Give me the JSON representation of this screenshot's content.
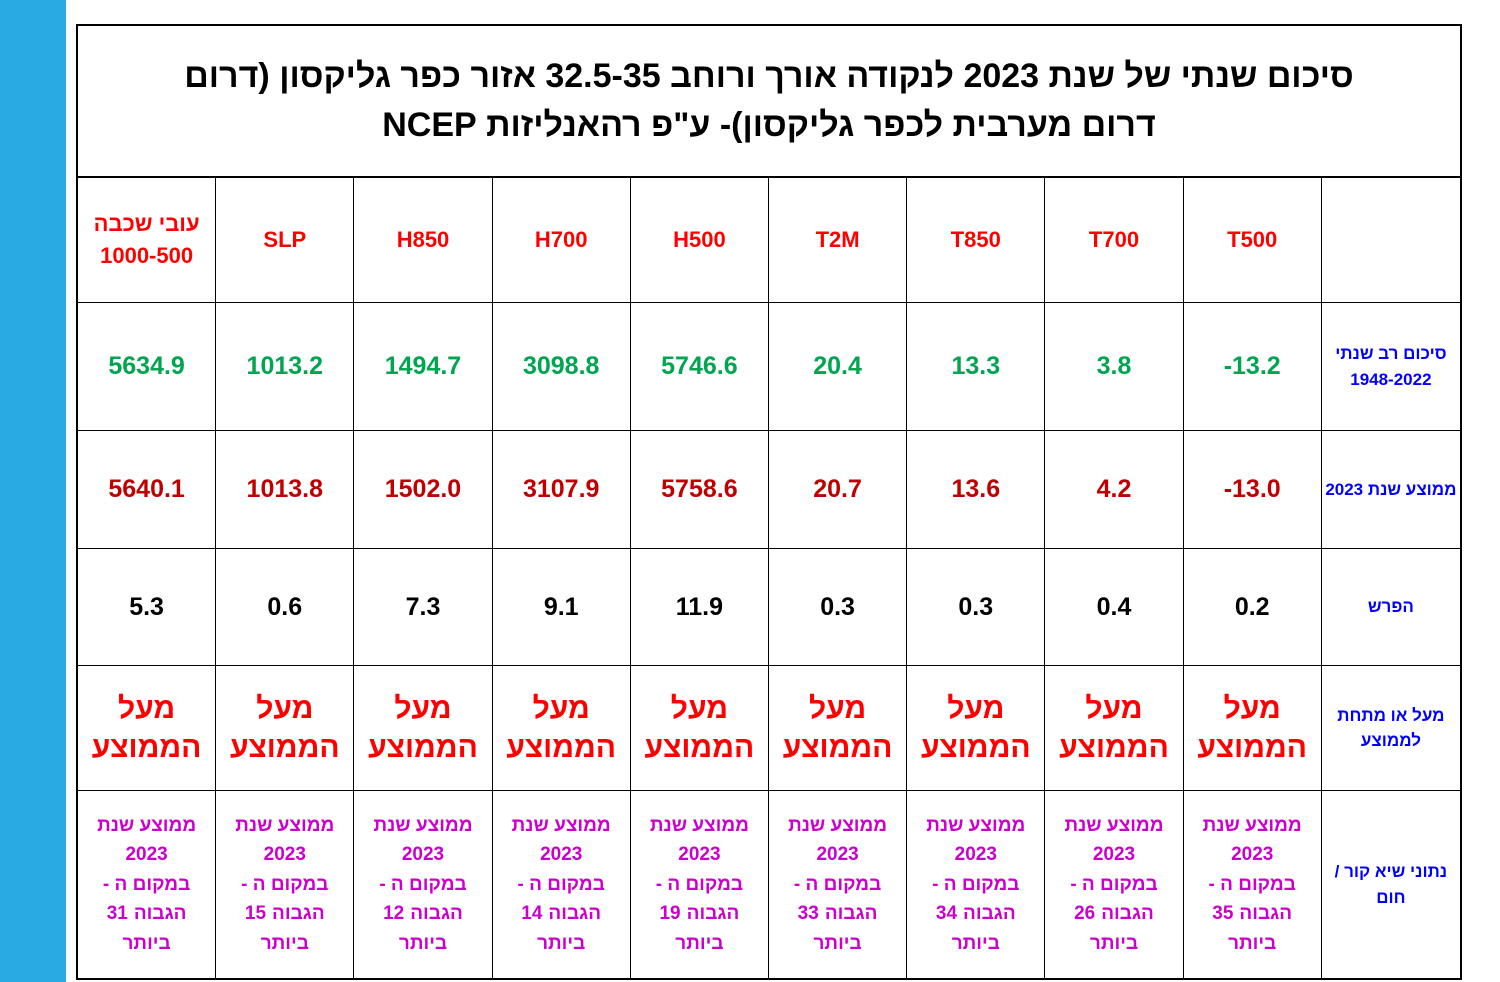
{
  "colors": {
    "stripe": "#29abe2",
    "border": "#000000",
    "title": "#000000",
    "header": "#ff0000",
    "multi_year": "#00a550",
    "avg_2023": "#c00000",
    "diff": "#000000",
    "above": "#ff0000",
    "records": "#cc00cc",
    "row_label": "#0000ff"
  },
  "title": "סיכום שנתי של שנת 2023 לנקודה אורך ורוחב 32.5-35  אזור כפר  גליקסון  (דרום\nדרום מערבית לכפר גליקסון)- ע\"פ רהאנליזות NCEP",
  "table": {
    "column_headers": [
      "עובי שכבה\n1000-500",
      "SLP",
      "H850",
      "H700",
      "H500",
      "T2M",
      "T850",
      "T700",
      "T500"
    ],
    "corner_label": "",
    "multi_year": {
      "label": "סיכום רב שנתי\n1948-2022",
      "values": [
        "5634.9",
        "1013.2",
        "1494.7",
        "3098.8",
        "5746.6",
        "20.4",
        "13.3",
        "3.8",
        "-13.2"
      ]
    },
    "avg_2023": {
      "label": "ממוצע שנת 2023",
      "values": [
        "5640.1",
        "1013.8",
        "1502.0",
        "3107.9",
        "5758.6",
        "20.7",
        "13.6",
        "4.2",
        "-13.0"
      ]
    },
    "diff": {
      "label": "הפרש",
      "values": [
        "5.3",
        "0.6",
        "7.3",
        "9.1",
        "11.9",
        "0.3",
        "0.3",
        "0.4",
        "0.2"
      ]
    },
    "above": {
      "label": "מעל או מתחת\nלממוצע",
      "cell_text": "מעל\nהממוצע"
    },
    "records": {
      "label": "נתוני שיא  קור /\nחום",
      "line1": "ממוצע שנת",
      "year": "2023",
      "line3": "במקום ה -",
      "rank_word": "הגבוה",
      "line5": "ביותר",
      "ranks": [
        "31",
        "15",
        "12",
        "14",
        "19",
        "33",
        "34",
        "26",
        "35"
      ]
    }
  }
}
